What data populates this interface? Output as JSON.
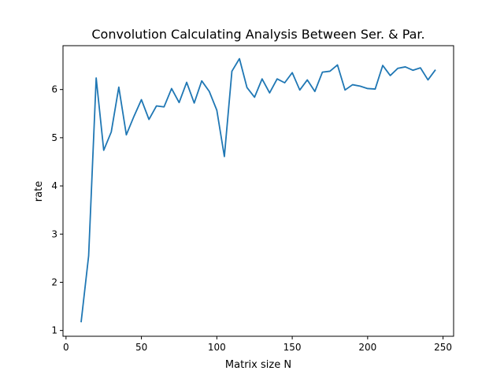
{
  "chart_data": {
    "type": "line",
    "title": "Convolution Calculating Analysis Between Ser. & Par.",
    "xlabel": "Matrix size N",
    "ylabel": "rate",
    "xlim": [
      -2,
      257
    ],
    "ylim": [
      0.88,
      6.91
    ],
    "xticks": [
      0,
      50,
      100,
      150,
      200,
      250
    ],
    "yticks": [
      1,
      2,
      3,
      4,
      5,
      6
    ],
    "grid": false,
    "series_color": "#1f77b4",
    "x": [
      10,
      15,
      20,
      25,
      30,
      35,
      40,
      45,
      50,
      55,
      60,
      65,
      70,
      75,
      80,
      85,
      90,
      95,
      100,
      105,
      110,
      115,
      120,
      125,
      130,
      135,
      140,
      145,
      150,
      155,
      160,
      165,
      170,
      175,
      180,
      185,
      190,
      195,
      200,
      205,
      210,
      215,
      220,
      225,
      230,
      235,
      240,
      245
    ],
    "y": [
      1.17,
      2.55,
      6.24,
      4.74,
      5.12,
      6.05,
      5.06,
      5.44,
      5.79,
      5.38,
      5.66,
      5.64,
      6.02,
      5.73,
      6.15,
      5.72,
      6.18,
      5.96,
      5.57,
      4.61,
      6.38,
      6.64,
      6.04,
      5.84,
      6.22,
      5.93,
      6.22,
      6.14,
      6.35,
      5.99,
      6.2,
      5.96,
      6.36,
      6.38,
      6.51,
      5.99,
      6.1,
      6.07,
      6.02,
      6.01,
      6.5,
      6.29,
      6.44,
      6.47,
      6.4,
      6.45,
      6.2,
      6.41
    ]
  }
}
